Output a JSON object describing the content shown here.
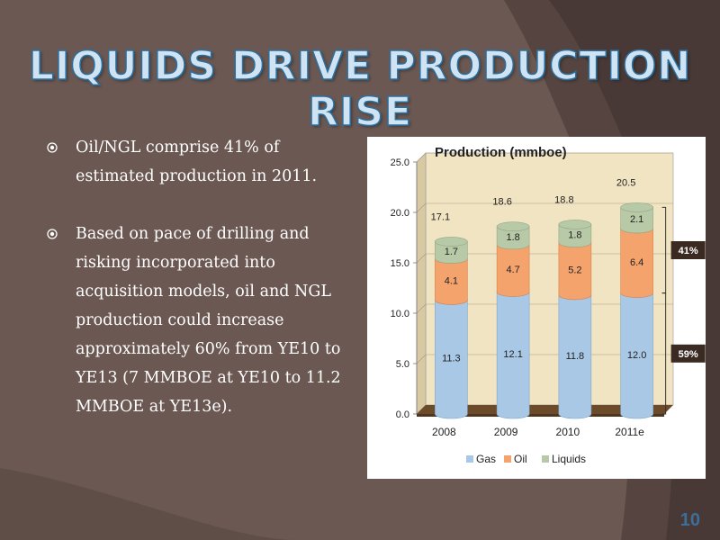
{
  "slide": {
    "title": "Liquids Drive Production Rise",
    "page_number": "10",
    "bullets": [
      "Oil/NGL comprise 41% of estimated production in 2011.",
      "Based on pace of drilling and risking incorporated into acquisition models, oil and NGL production could increase approximately 60% from YE10 to YE13 (7 MMBOE at YE10 to 11.2 MMBOE at YE13e)."
    ]
  },
  "colors": {
    "gas": "#a9c8e6",
    "oil": "#f3a36b",
    "liquids": "#b7c9a6",
    "floor": "#6b4b2a",
    "plot_bg": "#f1e4c3"
  },
  "chart_data": {
    "type": "bar",
    "stacked": true,
    "title": "Production (mmboe)",
    "categories": [
      "2008",
      "2009",
      "2010",
      "2011e"
    ],
    "series": [
      {
        "name": "Gas",
        "values": [
          11.3,
          12.1,
          11.8,
          12.0
        ]
      },
      {
        "name": "Oil",
        "values": [
          4.1,
          4.7,
          5.2,
          6.4
        ]
      },
      {
        "name": "Liquids",
        "values": [
          1.7,
          1.8,
          1.8,
          2.1
        ]
      }
    ],
    "totals": [
      "17.1",
      "18.6",
      "18.8",
      "20.5"
    ],
    "ylim": [
      0,
      25
    ],
    "yticks": [
      "0.0",
      "5.0",
      "10.0",
      "15.0",
      "20.0",
      "25.0"
    ],
    "legend": "bottom",
    "annotations": [
      {
        "text": "41%",
        "covers": "Oil + Liquids (2011e)"
      },
      {
        "text": "59%",
        "covers": "Gas (2011e)"
      }
    ]
  }
}
